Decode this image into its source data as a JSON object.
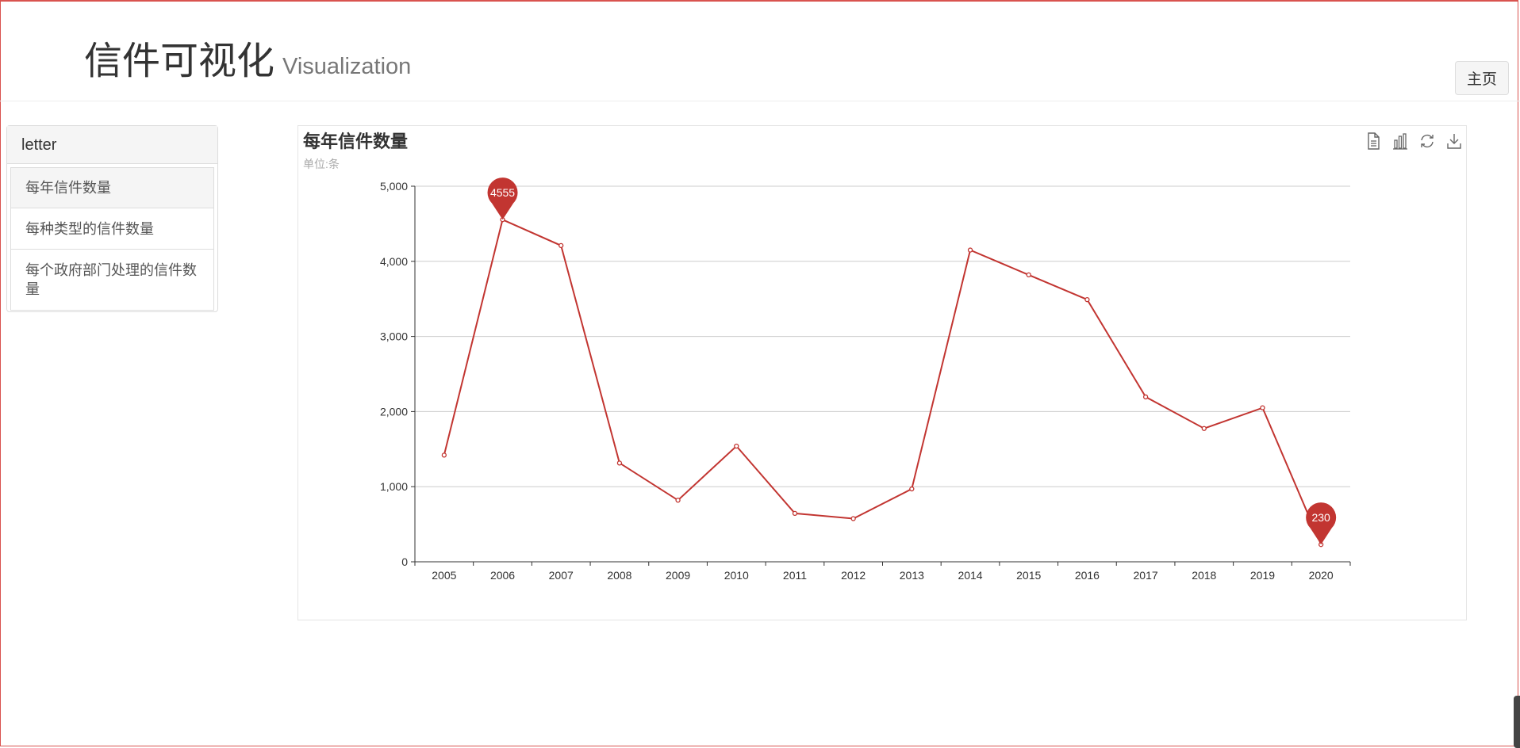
{
  "header": {
    "title": "信件可视化",
    "subtitle": "Visualization",
    "home_label": "主页"
  },
  "sidebar": {
    "heading": "letter",
    "items": [
      {
        "label": "每年信件数量",
        "active": true
      },
      {
        "label": "每种类型的信件数量",
        "active": false
      },
      {
        "label": "每个政府部门处理的信件数量",
        "active": false
      }
    ]
  },
  "colors": {
    "series": "#c23531",
    "grid": "#cccccc",
    "axis": "#333333"
  },
  "toolbox": {
    "icons": [
      "data-view-icon",
      "bar-chart-icon",
      "restore-icon",
      "download-icon"
    ]
  },
  "chart_data": {
    "type": "line",
    "title": "每年信件数量",
    "subtitle": "单位:条",
    "xlabel": "",
    "ylabel": "",
    "categories": [
      "2005",
      "2006",
      "2007",
      "2008",
      "2009",
      "2010",
      "2011",
      "2012",
      "2013",
      "2014",
      "2015",
      "2016",
      "2017",
      "2018",
      "2019",
      "2020"
    ],
    "series": [
      {
        "values": [
          1420,
          4555,
          4210,
          1315,
          820,
          1540,
          645,
          575,
          970,
          4150,
          3820,
          3490,
          2195,
          1775,
          2050,
          230
        ]
      }
    ],
    "ylim": [
      0,
      5000
    ],
    "yticks": [
      0,
      1000,
      2000,
      3000,
      4000,
      5000
    ],
    "ytick_labels": [
      "0",
      "1,000",
      "2,000",
      "3,000",
      "4,000",
      "5,000"
    ],
    "grid": true,
    "mark_points": [
      {
        "label": "4555",
        "category": "2006",
        "value": 4555
      },
      {
        "label": "230",
        "category": "2020",
        "value": 230
      }
    ]
  }
}
